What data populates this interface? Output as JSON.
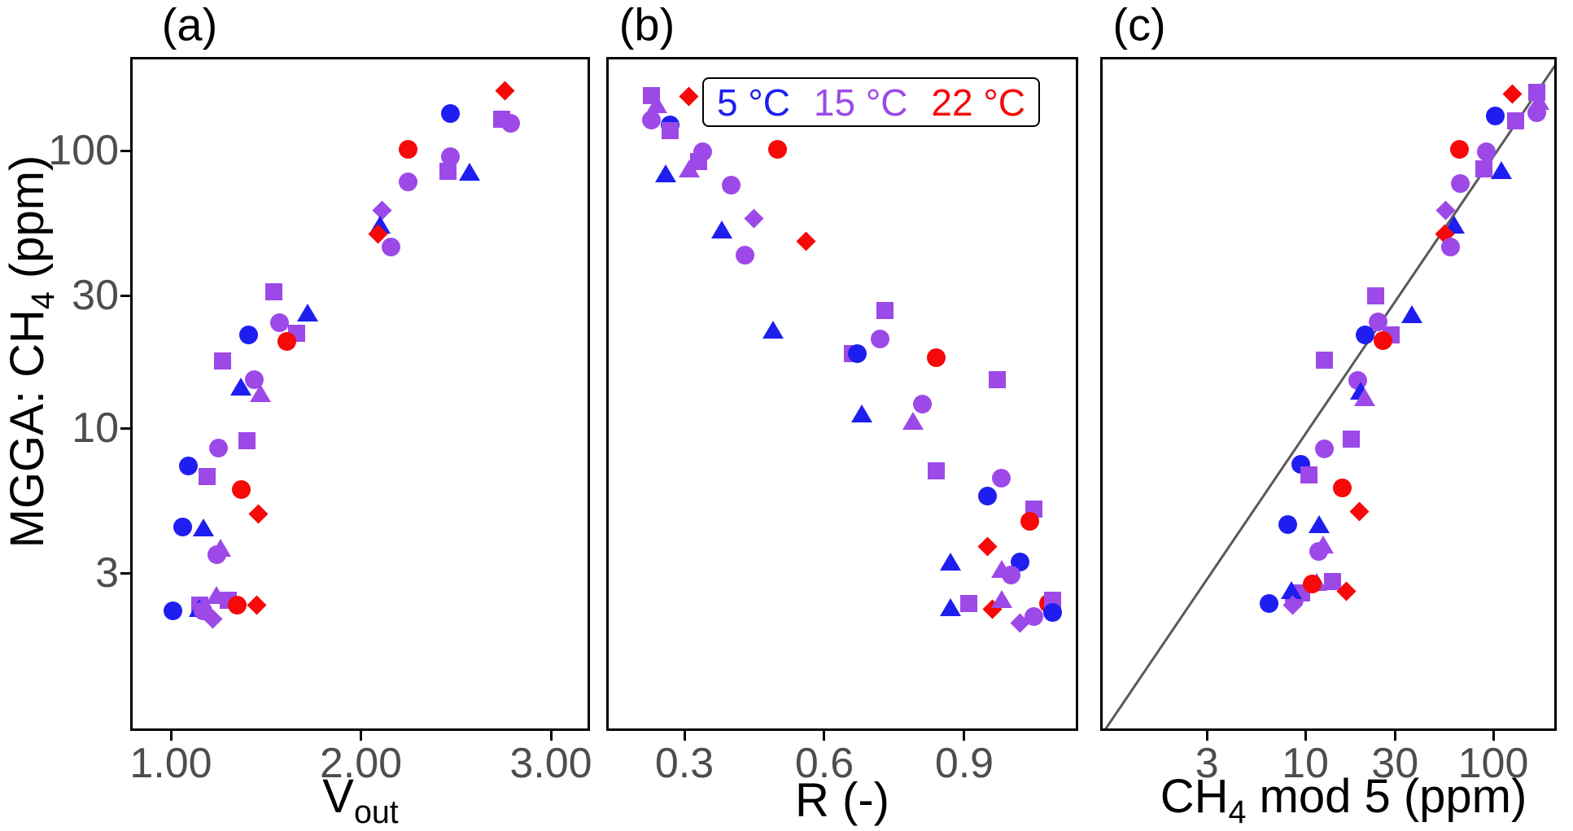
{
  "figure": {
    "panel_titles": {
      "a": "(a)",
      "b": "(b)",
      "c": "(c)"
    }
  },
  "axis_titles": {
    "y_pre": "MGGA: CH",
    "y_sub": "4",
    "y_post": " (ppm)",
    "a_pre": "V",
    "a_sub": "out",
    "b": "R (-)",
    "c_pre": "CH",
    "c_sub": "4",
    "c_post": " mod 5 (ppm)"
  },
  "legend": {
    "items": [
      {
        "label": "5 °C",
        "temp": "5",
        "color": "#1E1EF0"
      },
      {
        "label": "15 °C",
        "temp": "15",
        "color": "#9C49E8"
      },
      {
        "label": "22 °C",
        "temp": "22",
        "color": "#F60909"
      }
    ]
  },
  "colors": {
    "5": "#1E1EF0",
    "15": "#9C49E8",
    "22": "#F60909",
    "identity_line": "#595959",
    "tick_text": "#4d4d4d",
    "frame": "#000000"
  },
  "chart_data": {
    "type": "scatter",
    "shared_y_axis": {
      "label": "MGGA: CH4 (ppm)",
      "scale": "log10",
      "ticks": [
        3,
        10,
        30,
        100
      ],
      "range": [
        2.0,
        220
      ]
    },
    "point_format": "[x_value, mgga_ch4_ppm, temperature_C, marker_shape]",
    "marker_shapes_legend": "circle | triangle | square | diamond (shapes denote different measurement series; color = temperature)",
    "panels": [
      {
        "id": "a",
        "title": "(a)",
        "xlabel": "Vout",
        "x_scale": "linear",
        "x_ticks": [
          1.0,
          2.0,
          3.0
        ],
        "x_tick_labels": [
          "1.00",
          "2.00",
          "3.00"
        ],
        "x_range": [
          0.79,
          3.21
        ],
        "points": [
          [
            2.76,
            164,
            "22",
            "diamond"
          ],
          [
            2.47,
            136,
            "5",
            "circle"
          ],
          [
            2.74,
            130,
            "15",
            "square"
          ],
          [
            2.79,
            125,
            "15",
            "circle"
          ],
          [
            2.25,
            101,
            "22",
            "circle"
          ],
          [
            2.47,
            95,
            "15",
            "circle"
          ],
          [
            2.46,
            84,
            "15",
            "square"
          ],
          [
            2.57,
            84,
            "5",
            "triangle"
          ],
          [
            2.25,
            77,
            "15",
            "circle"
          ],
          [
            2.11,
            61,
            "15",
            "diamond"
          ],
          [
            2.1,
            54,
            "5",
            "triangle"
          ],
          [
            2.09,
            50,
            "22",
            "diamond"
          ],
          [
            2.16,
            45,
            "15",
            "circle"
          ],
          [
            1.54,
            31,
            "15",
            "square"
          ],
          [
            1.72,
            26,
            "5",
            "triangle"
          ],
          [
            1.57,
            24,
            "15",
            "circle"
          ],
          [
            1.41,
            21.6,
            "5",
            "circle"
          ],
          [
            1.66,
            22,
            "15",
            "square"
          ],
          [
            1.61,
            20.5,
            "22",
            "circle"
          ],
          [
            1.27,
            17.5,
            "15",
            "square"
          ],
          [
            1.44,
            14.9,
            "15",
            "circle"
          ],
          [
            1.37,
            14.1,
            "5",
            "triangle"
          ],
          [
            1.47,
            13.4,
            "15",
            "triangle"
          ],
          [
            1.4,
            9.0,
            "15",
            "square"
          ],
          [
            1.25,
            8.5,
            "15",
            "circle"
          ],
          [
            1.09,
            7.3,
            "5",
            "circle"
          ],
          [
            1.19,
            6.7,
            "15",
            "square"
          ],
          [
            1.37,
            6.0,
            "22",
            "circle"
          ],
          [
            1.46,
            4.9,
            "22",
            "diamond"
          ],
          [
            1.06,
            4.4,
            "5",
            "circle"
          ],
          [
            1.17,
            4.4,
            "5",
            "triangle"
          ],
          [
            1.26,
            3.7,
            "15",
            "triangle"
          ],
          [
            1.24,
            3.5,
            "15",
            "circle"
          ],
          [
            1.01,
            2.2,
            "5",
            "circle"
          ],
          [
            1.15,
            2.3,
            "15",
            "square"
          ],
          [
            1.15,
            2.25,
            "5",
            "triangle"
          ],
          [
            1.17,
            2.2,
            "15",
            "circle"
          ],
          [
            1.24,
            2.5,
            "15",
            "triangle"
          ],
          [
            1.3,
            2.4,
            "15",
            "square"
          ],
          [
            1.35,
            2.3,
            "22",
            "circle"
          ],
          [
            1.22,
            2.05,
            "15",
            "diamond"
          ],
          [
            1.45,
            2.3,
            "22",
            "diamond"
          ]
        ]
      },
      {
        "id": "b",
        "title": "(b)",
        "xlabel": "R (-)",
        "x_scale": "linear",
        "x_ticks": [
          0.3,
          0.6,
          0.9
        ],
        "x_tick_labels": [
          "0.3",
          "0.6",
          "0.9"
        ],
        "x_range": [
          0.135,
          1.145
        ],
        "points": [
          [
            0.23,
            158,
            "15",
            "square"
          ],
          [
            0.24,
            147,
            "15",
            "triangle"
          ],
          [
            0.23,
            129,
            "15",
            "circle"
          ],
          [
            0.27,
            124,
            "5",
            "circle"
          ],
          [
            0.27,
            118,
            "15",
            "square"
          ],
          [
            0.31,
            157,
            "22",
            "diamond"
          ],
          [
            0.26,
            83,
            "5",
            "triangle"
          ],
          [
            0.31,
            86,
            "15",
            "triangle"
          ],
          [
            0.33,
            91,
            "15",
            "square"
          ],
          [
            0.34,
            99,
            "15",
            "circle"
          ],
          [
            0.5,
            101,
            "22",
            "circle"
          ],
          [
            0.4,
            75,
            "15",
            "circle"
          ],
          [
            0.45,
            57,
            "15",
            "diamond"
          ],
          [
            0.38,
            52,
            "5",
            "triangle"
          ],
          [
            0.56,
            47,
            "22",
            "diamond"
          ],
          [
            0.43,
            42,
            "15",
            "circle"
          ],
          [
            0.49,
            22.6,
            "5",
            "triangle"
          ],
          [
            0.73,
            26.6,
            "15",
            "square"
          ],
          [
            0.72,
            21,
            "15",
            "circle"
          ],
          [
            0.66,
            18.6,
            "15",
            "square"
          ],
          [
            0.67,
            18.6,
            "5",
            "circle"
          ],
          [
            0.84,
            17.9,
            "22",
            "circle"
          ],
          [
            0.97,
            14.9,
            "15",
            "square"
          ],
          [
            0.81,
            12.2,
            "15",
            "circle"
          ],
          [
            0.68,
            11.3,
            "5",
            "triangle"
          ],
          [
            0.79,
            10.6,
            "15",
            "triangle"
          ],
          [
            0.84,
            7.0,
            "15",
            "square"
          ],
          [
            0.98,
            6.6,
            "15",
            "circle"
          ],
          [
            0.95,
            5.7,
            "5",
            "circle"
          ],
          [
            1.05,
            5.1,
            "15",
            "square"
          ],
          [
            1.04,
            4.6,
            "22",
            "circle"
          ],
          [
            0.95,
            3.75,
            "22",
            "diamond"
          ],
          [
            0.87,
            3.3,
            "5",
            "triangle"
          ],
          [
            1.02,
            3.3,
            "5",
            "circle"
          ],
          [
            0.98,
            3.1,
            "15",
            "triangle"
          ],
          [
            1.0,
            2.95,
            "15",
            "circle"
          ],
          [
            0.87,
            2.26,
            "5",
            "triangle"
          ],
          [
            0.91,
            2.34,
            "15",
            "square"
          ],
          [
            0.96,
            2.23,
            "22",
            "diamond"
          ],
          [
            0.98,
            2.42,
            "15",
            "triangle"
          ],
          [
            1.02,
            1.98,
            "15",
            "diamond"
          ],
          [
            1.05,
            2.1,
            "15",
            "circle"
          ],
          [
            1.08,
            2.34,
            "22",
            "circle"
          ],
          [
            1.09,
            2.39,
            "15",
            "square"
          ],
          [
            1.09,
            2.16,
            "5",
            "circle"
          ]
        ]
      },
      {
        "id": "c",
        "title": "(c)",
        "xlabel": "CH4 mod 5 (ppm)",
        "x_scale": "log10",
        "x_ticks": [
          3,
          10,
          30,
          100
        ],
        "x_tick_labels": [
          "3",
          "10",
          "30",
          "100"
        ],
        "x_range": [
          0.81,
          218
        ],
        "identity_line": {
          "present": true,
          "description": "1:1 line (y = x) from bottom-left to top-right corner"
        },
        "points": [
          [
            126,
            160,
            "22",
            "diamond"
          ],
          [
            170,
            162,
            "15",
            "square"
          ],
          [
            175,
            151,
            "15",
            "triangle"
          ],
          [
            103,
            133,
            "5",
            "circle"
          ],
          [
            132,
            128,
            "15",
            "square"
          ],
          [
            171,
            137,
            "15",
            "circle"
          ],
          [
            66,
            101,
            "22",
            "circle"
          ],
          [
            92,
            99,
            "15",
            "circle"
          ],
          [
            89,
            86,
            "15",
            "square"
          ],
          [
            111,
            85,
            "5",
            "triangle"
          ],
          [
            67,
            76,
            "15",
            "circle"
          ],
          [
            56,
            61,
            "15",
            "diamond"
          ],
          [
            62,
            54,
            "5",
            "triangle"
          ],
          [
            55,
            50,
            "22",
            "diamond"
          ],
          [
            59,
            45,
            "15",
            "circle"
          ],
          [
            23.6,
            30,
            "15",
            "square"
          ],
          [
            37,
            25.7,
            "5",
            "triangle"
          ],
          [
            24.3,
            24.2,
            "15",
            "circle"
          ],
          [
            20.9,
            21.6,
            "5",
            "circle"
          ],
          [
            28.5,
            21.7,
            "15",
            "square"
          ],
          [
            25.8,
            20.6,
            "22",
            "circle"
          ],
          [
            12.7,
            17.6,
            "15",
            "square"
          ],
          [
            19.1,
            14.8,
            "15",
            "circle"
          ],
          [
            19.7,
            13.6,
            "5",
            "triangle"
          ],
          [
            20.7,
            12.9,
            "15",
            "triangle"
          ],
          [
            17.6,
            9.1,
            "15",
            "square"
          ],
          [
            12.6,
            8.4,
            "15",
            "circle"
          ],
          [
            9.5,
            7.4,
            "5",
            "circle"
          ],
          [
            10.5,
            6.8,
            "15",
            "square"
          ],
          [
            15.8,
            6.1,
            "22",
            "circle"
          ],
          [
            19.5,
            5.0,
            "22",
            "diamond"
          ],
          [
            8.1,
            4.5,
            "5",
            "circle"
          ],
          [
            11.9,
            4.5,
            "5",
            "triangle"
          ],
          [
            12.4,
            3.8,
            "15",
            "triangle"
          ],
          [
            11.8,
            3.6,
            "15",
            "circle"
          ],
          [
            6.4,
            2.33,
            "5",
            "circle"
          ],
          [
            8.7,
            2.4,
            "15",
            "circle"
          ],
          [
            9.6,
            2.54,
            "15",
            "square"
          ],
          [
            8.4,
            2.6,
            "5",
            "triangle"
          ],
          [
            11.5,
            2.8,
            "15",
            "triangle"
          ],
          [
            13.9,
            2.8,
            "15",
            "square"
          ],
          [
            10.9,
            2.74,
            "22",
            "circle"
          ],
          [
            8.6,
            2.31,
            "15",
            "diamond"
          ],
          [
            16.6,
            2.59,
            "22",
            "diamond"
          ]
        ]
      }
    ]
  }
}
